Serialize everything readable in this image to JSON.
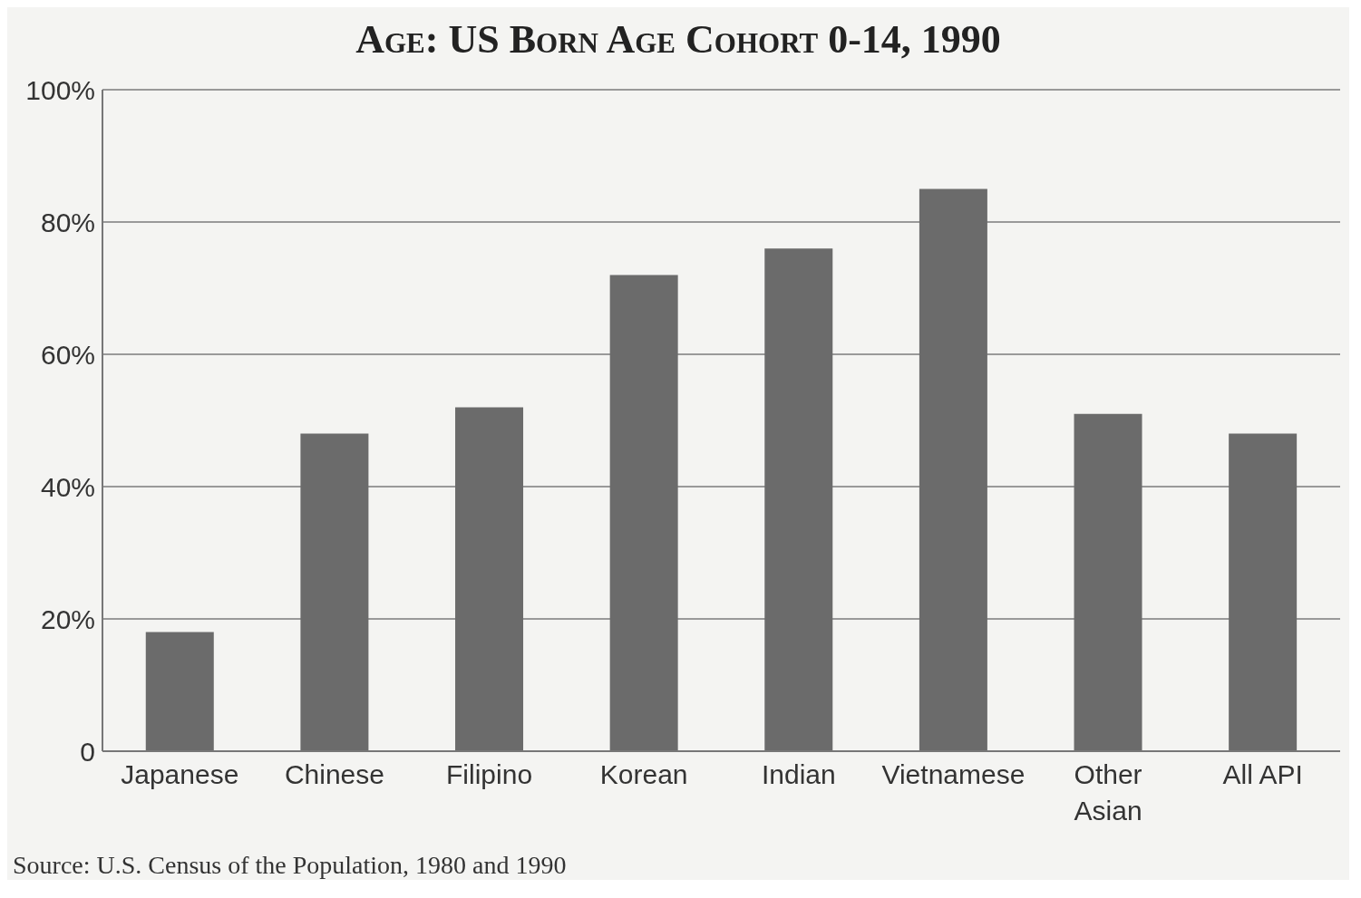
{
  "chart_data": {
    "type": "bar",
    "title": "Age: US Born Age Cohort 0-14, 1990",
    "categories": [
      "Japanese",
      "Chinese",
      "Filipino",
      "Korean",
      "Indian",
      "Vietnamese",
      "Other Asian",
      "All API"
    ],
    "values": [
      18,
      48,
      52,
      72,
      76,
      85,
      51,
      48
    ],
    "color": "#6b6b6b",
    "ylim": [
      0,
      100
    ],
    "yticks": [
      {
        "value": 0,
        "label": "0"
      },
      {
        "value": 20,
        "label": "20%"
      },
      {
        "value": 40,
        "label": "40%"
      },
      {
        "value": 60,
        "label": "60%"
      },
      {
        "value": 80,
        "label": "80%"
      },
      {
        "value": 100,
        "label": "100%"
      }
    ],
    "grid": "y",
    "annotations": [
      "Source: U.S. Census of the Population, 1980 and 1990"
    ]
  }
}
